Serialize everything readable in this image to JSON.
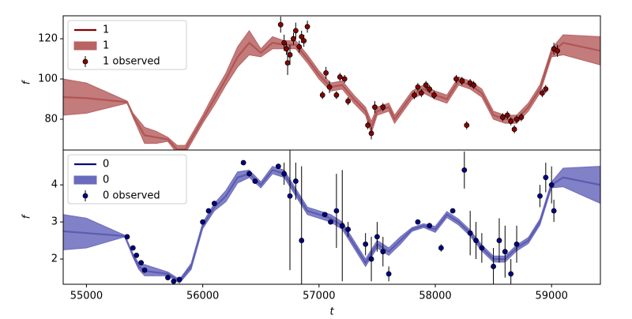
{
  "chart_data": [
    {
      "type": "line",
      "ylabel": "f",
      "xlim": [
        54800,
        59420
      ],
      "ylim": [
        64.7,
        131.4
      ],
      "yticks": [
        80,
        100,
        120
      ],
      "legend": "upper left",
      "series": [
        {
          "name": "1",
          "kind": "line",
          "color": "#800000",
          "x": [
            54800,
            55000,
            55350,
            55400,
            55500,
            55600,
            55700,
            55780,
            55850,
            56000,
            56100,
            56200,
            56300,
            56400,
            56500,
            56600,
            56700,
            56800,
            56900,
            57000,
            57100,
            57200,
            57300,
            57400,
            57450,
            57500,
            57600,
            57650,
            57800,
            57900,
            58000,
            58100,
            58200,
            58300,
            58400,
            58500,
            58600,
            58700,
            58800,
            58900,
            59000,
            59100,
            59420
          ],
          "values": [
            91,
            90.5,
            88.5,
            82,
            72,
            71,
            70,
            65,
            65,
            80,
            90,
            100,
            111,
            118,
            113,
            118,
            117,
            117,
            110,
            102,
            96,
            97,
            90,
            84,
            76,
            84,
            86,
            80,
            92,
            95,
            92,
            90,
            99,
            97,
            93,
            82,
            80,
            80,
            86,
            95,
            113,
            118,
            114
          ]
        },
        {
          "name": "1",
          "kind": "band",
          "color": "#b86464",
          "x": [
            54800,
            55000,
            55350,
            55400,
            55500,
            55600,
            55700,
            55780,
            55850,
            56000,
            56100,
            56200,
            56300,
            56400,
            56500,
            56600,
            56700,
            56800,
            56900,
            57000,
            57100,
            57200,
            57300,
            57400,
            57450,
            57500,
            57600,
            57650,
            57800,
            57900,
            58000,
            58100,
            58200,
            58300,
            58400,
            58500,
            58600,
            58700,
            58800,
            58900,
            59000,
            59100,
            59420
          ],
          "lower": [
            82,
            83,
            88,
            81,
            68,
            68,
            69,
            63,
            63,
            78,
            87,
            97,
            106,
            112,
            111,
            115,
            115,
            115,
            108,
            100,
            94,
            95,
            88,
            82,
            73,
            82,
            84,
            78,
            90,
            93,
            90,
            88,
            97,
            95,
            91,
            80,
            78,
            78,
            84,
            93,
            111,
            112,
            107
          ],
          "upper": [
            100,
            98,
            89,
            83,
            76,
            74,
            71,
            67,
            67,
            82,
            93,
            103,
            116,
            124,
            115,
            121,
            119,
            119,
            112,
            104,
            98,
            99,
            92,
            86,
            79,
            86,
            88,
            82,
            94,
            97,
            94,
            92,
            101,
            99,
            95,
            84,
            82,
            82,
            88,
            97,
            115,
            122,
            121
          ]
        },
        {
          "name": "1 observed",
          "kind": "errorbar",
          "color": "#8b0000",
          "x": [
            56670,
            56700,
            56720,
            56730,
            56750,
            56780,
            56800,
            56830,
            56850,
            56870,
            56900,
            57030,
            57060,
            57090,
            57150,
            57180,
            57220,
            57250,
            57420,
            57450,
            57480,
            57550,
            57820,
            57850,
            57880,
            57920,
            57950,
            57990,
            58180,
            58230,
            58270,
            58300,
            58330,
            58580,
            58620,
            58650,
            58680,
            58700,
            58740,
            58920,
            58950,
            59020,
            59050
          ],
          "values": [
            127,
            118,
            115,
            108,
            112,
            120,
            124,
            116,
            121,
            119,
            126,
            92,
            103,
            96,
            92,
            101,
            100,
            89,
            77,
            73,
            86,
            86,
            92,
            96,
            93,
            97,
            95,
            92,
            100,
            99,
            77,
            98,
            97,
            81,
            82,
            79,
            75,
            80,
            81,
            93,
            95,
            115,
            114
          ],
          "errors": [
            4,
            4,
            3,
            6,
            5,
            3,
            4,
            3,
            3,
            3,
            3,
            2,
            3,
            3,
            2,
            2,
            2,
            2,
            2,
            3,
            3,
            2,
            2,
            2,
            2,
            2,
            2,
            2,
            2,
            2,
            2,
            2,
            2,
            2,
            2,
            2,
            2,
            2,
            2,
            2,
            2,
            3,
            3
          ]
        }
      ]
    },
    {
      "type": "line",
      "ylabel": "f",
      "xlabel": "t",
      "xlim": [
        54800,
        59420
      ],
      "ylim": [
        1.32,
        4.94
      ],
      "yticks": [
        2,
        3,
        4
      ],
      "xticks": [
        55000,
        56000,
        57000,
        58000,
        59000
      ],
      "legend": "upper left",
      "series": [
        {
          "name": "0",
          "kind": "line",
          "color": "#000080",
          "x": [
            54800,
            55000,
            55330,
            55400,
            55450,
            55500,
            55700,
            55800,
            55900,
            56000,
            56100,
            56200,
            56300,
            56400,
            56500,
            56600,
            56700,
            56800,
            56900,
            57000,
            57100,
            57200,
            57300,
            57400,
            57500,
            57600,
            57700,
            57800,
            57900,
            58000,
            58100,
            58200,
            58300,
            58400,
            58500,
            58600,
            58700,
            58800,
            58900,
            59000,
            59100,
            59420
          ],
          "values": [
            2.75,
            2.7,
            2.62,
            2.1,
            1.8,
            1.68,
            1.6,
            1.4,
            1.8,
            2.9,
            3.4,
            3.7,
            4.2,
            4.3,
            4.0,
            4.4,
            4.3,
            3.8,
            3.3,
            3.2,
            3.1,
            2.9,
            2.4,
            1.9,
            2.4,
            2.2,
            2.5,
            2.8,
            2.9,
            2.8,
            3.2,
            3.0,
            2.7,
            2.3,
            2.0,
            2.0,
            2.3,
            2.5,
            3.0,
            4.0,
            4.2,
            4.0
          ]
        },
        {
          "name": "0",
          "kind": "band",
          "color": "#6b6bbd",
          "x": [
            54800,
            55000,
            55330,
            55400,
            55450,
            55500,
            55700,
            55800,
            55900,
            56000,
            56100,
            56200,
            56300,
            56400,
            56500,
            56600,
            56700,
            56800,
            56900,
            57000,
            57100,
            57200,
            57300,
            57400,
            57500,
            57600,
            57700,
            57800,
            57900,
            58000,
            58100,
            58200,
            58300,
            58400,
            58500,
            58600,
            58700,
            58800,
            58900,
            59000,
            59100,
            59420
          ],
          "lower": [
            2.25,
            2.3,
            2.6,
            2.05,
            1.72,
            1.55,
            1.55,
            1.35,
            1.72,
            2.82,
            3.3,
            3.55,
            4.05,
            4.2,
            3.92,
            4.3,
            4.2,
            3.7,
            3.2,
            3.1,
            3.0,
            2.8,
            2.3,
            1.8,
            2.3,
            2.1,
            2.4,
            2.75,
            2.85,
            2.72,
            3.12,
            2.92,
            2.62,
            2.22,
            1.92,
            1.92,
            2.22,
            2.42,
            2.92,
            3.92,
            3.95,
            3.5
          ],
          "upper": [
            3.2,
            3.1,
            2.64,
            2.15,
            1.88,
            1.85,
            1.65,
            1.45,
            1.88,
            2.98,
            3.5,
            3.85,
            4.35,
            4.4,
            4.08,
            4.5,
            4.4,
            3.9,
            3.4,
            3.3,
            3.2,
            3.0,
            2.5,
            2.0,
            2.5,
            2.3,
            2.6,
            2.85,
            2.95,
            2.88,
            3.28,
            3.08,
            2.78,
            2.38,
            2.08,
            2.08,
            2.38,
            2.58,
            3.08,
            4.08,
            4.45,
            4.5
          ]
        },
        {
          "name": "0 observed",
          "kind": "errorbar",
          "color": "#00008b",
          "x": [
            55350,
            55400,
            55430,
            55470,
            55500,
            55700,
            55750,
            55800,
            56000,
            56050,
            56100,
            56350,
            56400,
            56450,
            56650,
            56700,
            56750,
            56800,
            56850,
            57050,
            57100,
            57150,
            57200,
            57250,
            57400,
            57450,
            57500,
            57550,
            57600,
            57850,
            57950,
            58050,
            58150,
            58250,
            58300,
            58350,
            58400,
            58500,
            58550,
            58600,
            58650,
            58700,
            58900,
            58950,
            59000,
            59020
          ],
          "values": [
            2.6,
            2.3,
            2.1,
            1.9,
            1.7,
            1.5,
            1.4,
            1.45,
            3.0,
            3.3,
            3.5,
            4.6,
            4.3,
            4.1,
            4.5,
            4.3,
            3.7,
            4.1,
            2.5,
            3.2,
            3.0,
            3.3,
            2.9,
            2.8,
            2.4,
            2.0,
            2.6,
            2.2,
            1.6,
            3.0,
            2.9,
            2.3,
            3.3,
            4.4,
            2.7,
            2.5,
            2.3,
            1.8,
            2.5,
            2.2,
            1.6,
            2.4,
            3.7,
            4.2,
            4.0,
            3.3
          ],
          "errors": [
            0.05,
            0.05,
            0.05,
            0.05,
            0.05,
            0.05,
            0.05,
            0.05,
            0.05,
            0.05,
            0.05,
            0.05,
            0.05,
            0.05,
            0.05,
            0.3,
            2,
            0.5,
            2,
            0.05,
            0.05,
            1,
            1.5,
            0.2,
            0.3,
            0.6,
            0.4,
            0.4,
            0.2,
            0.05,
            0.05,
            0.1,
            0.05,
            0.5,
            0.6,
            0.5,
            0.4,
            0.5,
            0.6,
            0.7,
            0.4,
            0.5,
            0.3,
            0.4,
            0.5,
            0.3
          ]
        }
      ]
    }
  ]
}
